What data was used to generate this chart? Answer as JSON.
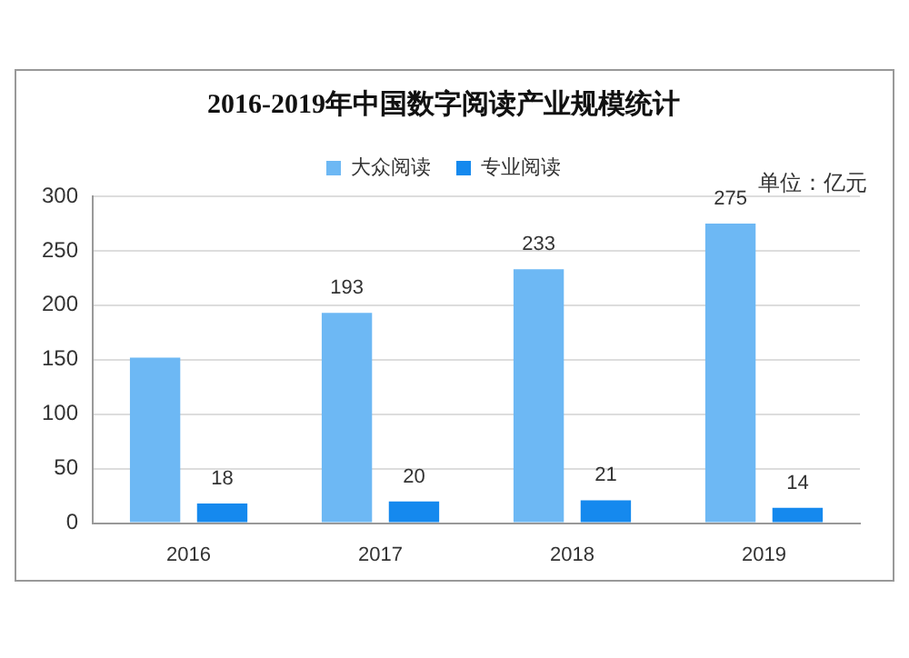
{
  "chart_data": {
    "type": "bar",
    "title": "2016-2019年中国数字阅读产业规模统计",
    "annotations": [
      "单位：亿元"
    ],
    "categories": [
      "2016",
      "2017",
      "2018",
      "2019"
    ],
    "series": [
      {
        "name": "大众阅读",
        "color": "#6db8f4",
        "values": [
          152,
          193,
          233,
          275
        ],
        "value_labels": [
          null,
          "193",
          "233",
          "275"
        ]
      },
      {
        "name": "专业阅读",
        "color": "#1589ee",
        "values": [
          18,
          20,
          21,
          14
        ],
        "value_labels": [
          "18",
          "20",
          "21",
          "14"
        ]
      }
    ],
    "ylim": [
      0,
      300
    ],
    "yticks": [
      0,
      50,
      100,
      150,
      200,
      250,
      300
    ],
    "grid": "y",
    "legend": "top"
  }
}
